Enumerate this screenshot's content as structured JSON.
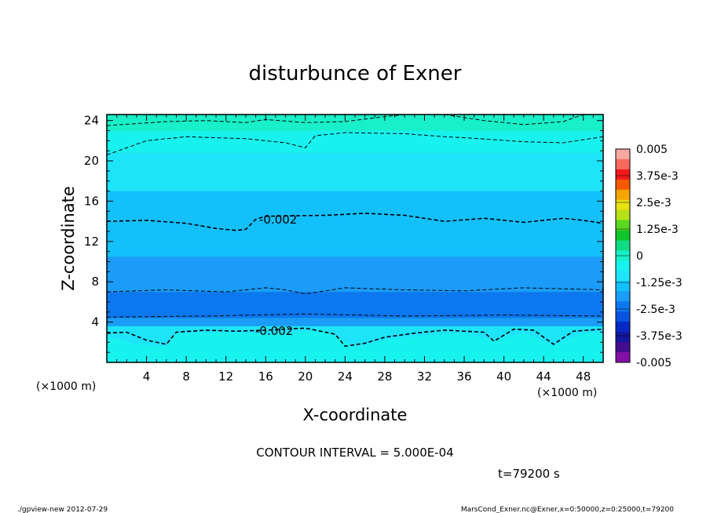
{
  "chart_data": {
    "type": "heatmap",
    "title": "disturbunce of Exner",
    "xlabel": "X-coordinate",
    "ylabel": "Z-coordinate",
    "x_unit": "(×1000 m)",
    "y_unit": "(×1000 m)",
    "xlim": [
      0,
      50
    ],
    "ylim": [
      0,
      24.6
    ],
    "x_ticks": [
      "4",
      "8",
      "12",
      "16",
      "20",
      "24",
      "28",
      "32",
      "36",
      "40",
      "44",
      "48"
    ],
    "y_ticks": [
      "4",
      "8",
      "12",
      "16",
      "20",
      "24"
    ],
    "colorbar": {
      "labels": [
        "0.005",
        "3.75e-3",
        "2.5e-3",
        "1.25e-3",
        "0",
        "-1.25e-3",
        "-2.5e-3",
        "-3.75e-3",
        "-0.005"
      ],
      "colors": [
        "#f6a8a0",
        "#f76a5c",
        "#f2181c",
        "#f35a00",
        "#f5a400",
        "#e8e010",
        "#b6e018",
        "#58d820",
        "#10c62a",
        "#10dc84",
        "#17f0c8",
        "#18f2ee",
        "#1ee4fa",
        "#12c0fc",
        "#1a9cf8",
        "#0c78f0",
        "#0a52e0",
        "#0628c4",
        "#1416a0",
        "#440c90",
        "#8410a8"
      ],
      "range": [
        -0.005,
        0.005
      ]
    },
    "bands": [
      {
        "level": "-3.0e-3 to -2.5e-3",
        "color": "#0c78f0",
        "z": [
          4.4,
          7.0
        ]
      },
      {
        "level": "-2.5e-3 to -2.0e-3",
        "color": "#1a9cf8",
        "z": [
          3.6,
          4.4
        ]
      },
      {
        "level": "-2.5e-3 to -2.0e-3",
        "color": "#1a9cf8",
        "z": [
          7.0,
          10.5
        ]
      },
      {
        "level": "-2.0e-3 to -1.5e-3",
        "color": "#12c0fc",
        "z": [
          10.5,
          17.0
        ]
      },
      {
        "level": "-1.5e-3 to -1.0e-3",
        "color": "#1ee4fa",
        "z": [
          17.0,
          20.8
        ]
      },
      {
        "level": "-1.0e-3 to -0.5e-3",
        "color": "#18f2ee",
        "z": [
          20.8,
          23.0
        ]
      },
      {
        "level": "-0.5e-3 to 0",
        "color": "#17f0c8",
        "z": [
          23.0,
          24.6
        ]
      }
    ],
    "contour_labels": [
      "-0.002",
      "-0.002"
    ],
    "annotations": {
      "contour_interval": "CONTOUR INTERVAL = 5.000E-04",
      "time": "t=79200 s"
    }
  },
  "footer": {
    "left": "./gpview-new  2012-07-29",
    "right": "MarsCond_Exner.nc@Exner,x=0:50000,z=0:25000,t=79200"
  }
}
